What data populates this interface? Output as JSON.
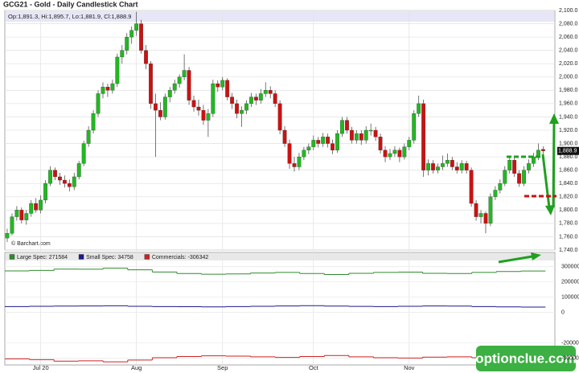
{
  "chart_data": {
    "type": "candlestick",
    "title": "GCG21 - Gold - Daily Candlestick Chart",
    "info": "Op:1,891.3, Hi:1,895.7, Lo:1,881.9, Cl:1,888.9",
    "last_value_label": "1,888.9",
    "source": "© Barchart.com",
    "watermark": "optionclue.com",
    "up_color": "#22b822",
    "down_color": "#cc1111",
    "grid": true,
    "ylim": [
      1740,
      2100
    ],
    "yticks": [
      {
        "value": 1740,
        "label": "1,740.0"
      },
      {
        "value": 1760,
        "label": "1,760.0"
      },
      {
        "value": 1780,
        "label": "1,780.0"
      },
      {
        "value": 1800,
        "label": "1,800.0"
      },
      {
        "value": 1820,
        "label": "1,820.0"
      },
      {
        "value": 1840,
        "label": "1,840.0"
      },
      {
        "value": 1860,
        "label": "1,860.0"
      },
      {
        "value": 1880,
        "label": "1,880.0"
      },
      {
        "value": 1900,
        "label": "1,900.0"
      },
      {
        "value": 1920,
        "label": "1,920.0"
      },
      {
        "value": 1940,
        "label": "1,940.0"
      },
      {
        "value": 1960,
        "label": "1,960.0"
      },
      {
        "value": 1980,
        "label": "1,980.0"
      },
      {
        "value": 2000,
        "label": "2,000.0"
      },
      {
        "value": 2020,
        "label": "2,020.0"
      },
      {
        "value": 2040,
        "label": "2,040.0"
      },
      {
        "value": 2060,
        "label": "2,060.0"
      },
      {
        "value": 2080,
        "label": "2,080.0"
      },
      {
        "value": 2100,
        "label": "2,100.0"
      }
    ],
    "categories": [
      null,
      null,
      null,
      null,
      null,
      null,
      null,
      "Jul 20",
      null,
      null,
      null,
      null,
      null,
      null,
      null,
      null,
      null,
      null,
      null,
      null,
      null,
      null,
      null,
      null,
      null,
      null,
      null,
      "Aug",
      null,
      null,
      null,
      null,
      null,
      null,
      null,
      null,
      null,
      null,
      null,
      null,
      null,
      null,
      null,
      null,
      null,
      "Sep",
      null,
      null,
      null,
      null,
      null,
      null,
      null,
      null,
      null,
      null,
      null,
      null,
      null,
      null,
      null,
      null,
      null,
      null,
      "Oct",
      null,
      null,
      null,
      null,
      null,
      null,
      null,
      null,
      null,
      null,
      null,
      null,
      null,
      null,
      null,
      null,
      null,
      null,
      null,
      "Nov",
      null,
      null,
      null,
      null,
      null,
      null,
      null,
      null,
      null,
      null,
      null,
      null,
      null,
      null,
      null,
      null,
      null,
      null,
      null,
      null,
      null,
      null,
      null,
      null,
      null,
      null,
      null,
      null
    ],
    "ohlc": [
      [
        1758,
        1772,
        1752,
        1765
      ],
      [
        1765,
        1795,
        1762,
        1790
      ],
      [
        1790,
        1806,
        1784,
        1800
      ],
      [
        1800,
        1804,
        1780,
        1785
      ],
      [
        1785,
        1800,
        1778,
        1795
      ],
      [
        1795,
        1815,
        1790,
        1810
      ],
      [
        1810,
        1818,
        1796,
        1800
      ],
      [
        1800,
        1822,
        1795,
        1815
      ],
      [
        1815,
        1845,
        1810,
        1840
      ],
      [
        1840,
        1866,
        1836,
        1860
      ],
      [
        1860,
        1864,
        1845,
        1850
      ],
      [
        1850,
        1856,
        1838,
        1845
      ],
      [
        1845,
        1852,
        1834,
        1840
      ],
      [
        1840,
        1846,
        1828,
        1835
      ],
      [
        1835,
        1856,
        1830,
        1850
      ],
      [
        1850,
        1874,
        1846,
        1870
      ],
      [
        1870,
        1904,
        1866,
        1900
      ],
      [
        1900,
        1926,
        1895,
        1920
      ],
      [
        1920,
        1950,
        1915,
        1945
      ],
      [
        1945,
        1980,
        1940,
        1975
      ],
      [
        1975,
        1992,
        1968,
        1985
      ],
      [
        1985,
        1990,
        1970,
        1980
      ],
      [
        1980,
        1996,
        1975,
        1990
      ],
      [
        1990,
        2035,
        1985,
        2030
      ],
      [
        2030,
        2048,
        2020,
        2040
      ],
      [
        2040,
        2066,
        2034,
        2060
      ],
      [
        2060,
        2076,
        2050,
        2070
      ],
      [
        2070,
        2098,
        2062,
        2080
      ],
      [
        2080,
        2086,
        2035,
        2040
      ],
      [
        2040,
        2048,
        2012,
        2020
      ],
      [
        2020,
        2024,
        1952,
        1960
      ],
      [
        1960,
        1975,
        1880,
        1950
      ],
      [
        1950,
        1962,
        1935,
        1940
      ],
      [
        1940,
        1975,
        1936,
        1970
      ],
      [
        1970,
        1985,
        1962,
        1980
      ],
      [
        1980,
        1996,
        1975,
        1990
      ],
      [
        1990,
        2004,
        1984,
        2000
      ],
      [
        2000,
        2034,
        1995,
        2010
      ],
      [
        2010,
        2015,
        1958,
        1965
      ],
      [
        1965,
        1972,
        1948,
        1955
      ],
      [
        1955,
        1966,
        1942,
        1950
      ],
      [
        1950,
        1958,
        1928,
        1935
      ],
      [
        1935,
        1952,
        1910,
        1945
      ],
      [
        1945,
        1996,
        1940,
        1990
      ],
      [
        1990,
        1995,
        1978,
        1985
      ],
      [
        1985,
        2000,
        1980,
        1995
      ],
      [
        1995,
        1998,
        1965,
        1970
      ],
      [
        1970,
        1976,
        1952,
        1960
      ],
      [
        1960,
        1966,
        1938,
        1945
      ],
      [
        1945,
        1956,
        1925,
        1950
      ],
      [
        1950,
        1965,
        1944,
        1960
      ],
      [
        1960,
        1976,
        1955,
        1970
      ],
      [
        1970,
        1975,
        1958,
        1965
      ],
      [
        1965,
        1982,
        1960,
        1975
      ],
      [
        1975,
        1992,
        1970,
        1980
      ],
      [
        1980,
        1986,
        1968,
        1975
      ],
      [
        1975,
        1980,
        1955,
        1960
      ],
      [
        1960,
        1965,
        1914,
        1920
      ],
      [
        1920,
        1926,
        1895,
        1900
      ],
      [
        1900,
        1906,
        1862,
        1870
      ],
      [
        1870,
        1880,
        1858,
        1865
      ],
      [
        1865,
        1886,
        1860,
        1880
      ],
      [
        1880,
        1895,
        1875,
        1890
      ],
      [
        1890,
        1900,
        1884,
        1895
      ],
      [
        1895,
        1912,
        1890,
        1905
      ],
      [
        1905,
        1910,
        1894,
        1900
      ],
      [
        1900,
        1916,
        1895,
        1910
      ],
      [
        1910,
        1915,
        1894,
        1900
      ],
      [
        1900,
        1906,
        1884,
        1890
      ],
      [
        1890,
        1920,
        1886,
        1915
      ],
      [
        1915,
        1940,
        1910,
        1935
      ],
      [
        1935,
        1940,
        1915,
        1920
      ],
      [
        1920,
        1925,
        1900,
        1905
      ],
      [
        1905,
        1920,
        1900,
        1915
      ],
      [
        1915,
        1920,
        1898,
        1905
      ],
      [
        1905,
        1926,
        1900,
        1920
      ],
      [
        1920,
        1930,
        1912,
        1920
      ],
      [
        1920,
        1925,
        1904,
        1910
      ],
      [
        1910,
        1915,
        1885,
        1890
      ],
      [
        1890,
        1896,
        1872,
        1880
      ],
      [
        1880,
        1892,
        1875,
        1885
      ],
      [
        1885,
        1896,
        1880,
        1890
      ],
      [
        1890,
        1894,
        1872,
        1880
      ],
      [
        1880,
        1900,
        1876,
        1895
      ],
      [
        1895,
        1910,
        1890,
        1905
      ],
      [
        1905,
        1950,
        1900,
        1945
      ],
      [
        1945,
        1972,
        1940,
        1960
      ],
      [
        1960,
        1966,
        1850,
        1860
      ],
      [
        1860,
        1876,
        1852,
        1870
      ],
      [
        1870,
        1875,
        1855,
        1860
      ],
      [
        1860,
        1870,
        1855,
        1865
      ],
      [
        1865,
        1882,
        1860,
        1870
      ],
      [
        1870,
        1885,
        1865,
        1875
      ],
      [
        1875,
        1880,
        1860,
        1865
      ],
      [
        1865,
        1872,
        1855,
        1860
      ],
      [
        1860,
        1875,
        1855,
        1870
      ],
      [
        1870,
        1874,
        1855,
        1860
      ],
      [
        1860,
        1864,
        1805,
        1810
      ],
      [
        1810,
        1815,
        1784,
        1790
      ],
      [
        1790,
        1800,
        1780,
        1795
      ],
      [
        1795,
        1798,
        1765,
        1780
      ],
      [
        1780,
        1825,
        1776,
        1820
      ],
      [
        1820,
        1836,
        1815,
        1830
      ],
      [
        1830,
        1846,
        1825,
        1840
      ],
      [
        1840,
        1866,
        1836,
        1860
      ],
      [
        1860,
        1880,
        1855,
        1875
      ],
      [
        1875,
        1880,
        1850,
        1855
      ],
      [
        1855,
        1860,
        1835,
        1840
      ],
      [
        1840,
        1866,
        1836,
        1860
      ],
      [
        1860,
        1876,
        1855,
        1870
      ],
      [
        1870,
        1886,
        1865,
        1880
      ],
      [
        1880,
        1900,
        1875,
        1890
      ],
      [
        1891.3,
        1895.7,
        1881.9,
        1888.9
      ]
    ],
    "cot": {
      "ylim": [
        -340000,
        330000
      ],
      "yticks": [
        300000,
        200000,
        100000,
        0,
        -200000,
        -300000
      ],
      "series": [
        {
          "name": "Large Spec: 271584",
          "color": "#2e8b2e",
          "values": [
            272000,
            275000,
            284000,
            283000,
            290000,
            279000,
            265000,
            255000,
            250000,
            252000,
            258000,
            262000,
            255000,
            248000,
            256000,
            262000,
            264000,
            256000,
            255000,
            262000,
            268000,
            271584
          ]
        },
        {
          "name": "Small Spec: 34758",
          "color": "#1a1a8c",
          "values": [
            38000,
            40000,
            41000,
            42000,
            43000,
            40000,
            38000,
            37000,
            36000,
            38000,
            40000,
            42000,
            44000,
            41000,
            39000,
            38000,
            40000,
            42000,
            41000,
            38000,
            36000,
            34758
          ]
        },
        {
          "name": "Commercials: -306342",
          "color": "#cc2222",
          "values": [
            -305000,
            -310000,
            -320000,
            -318000,
            -325000,
            -313000,
            -298000,
            -290000,
            -285000,
            -287000,
            -292000,
            -296000,
            -290000,
            -283000,
            -292000,
            -298000,
            -300000,
            -294000,
            -292000,
            -298000,
            -304000,
            -306342
          ]
        }
      ]
    }
  }
}
